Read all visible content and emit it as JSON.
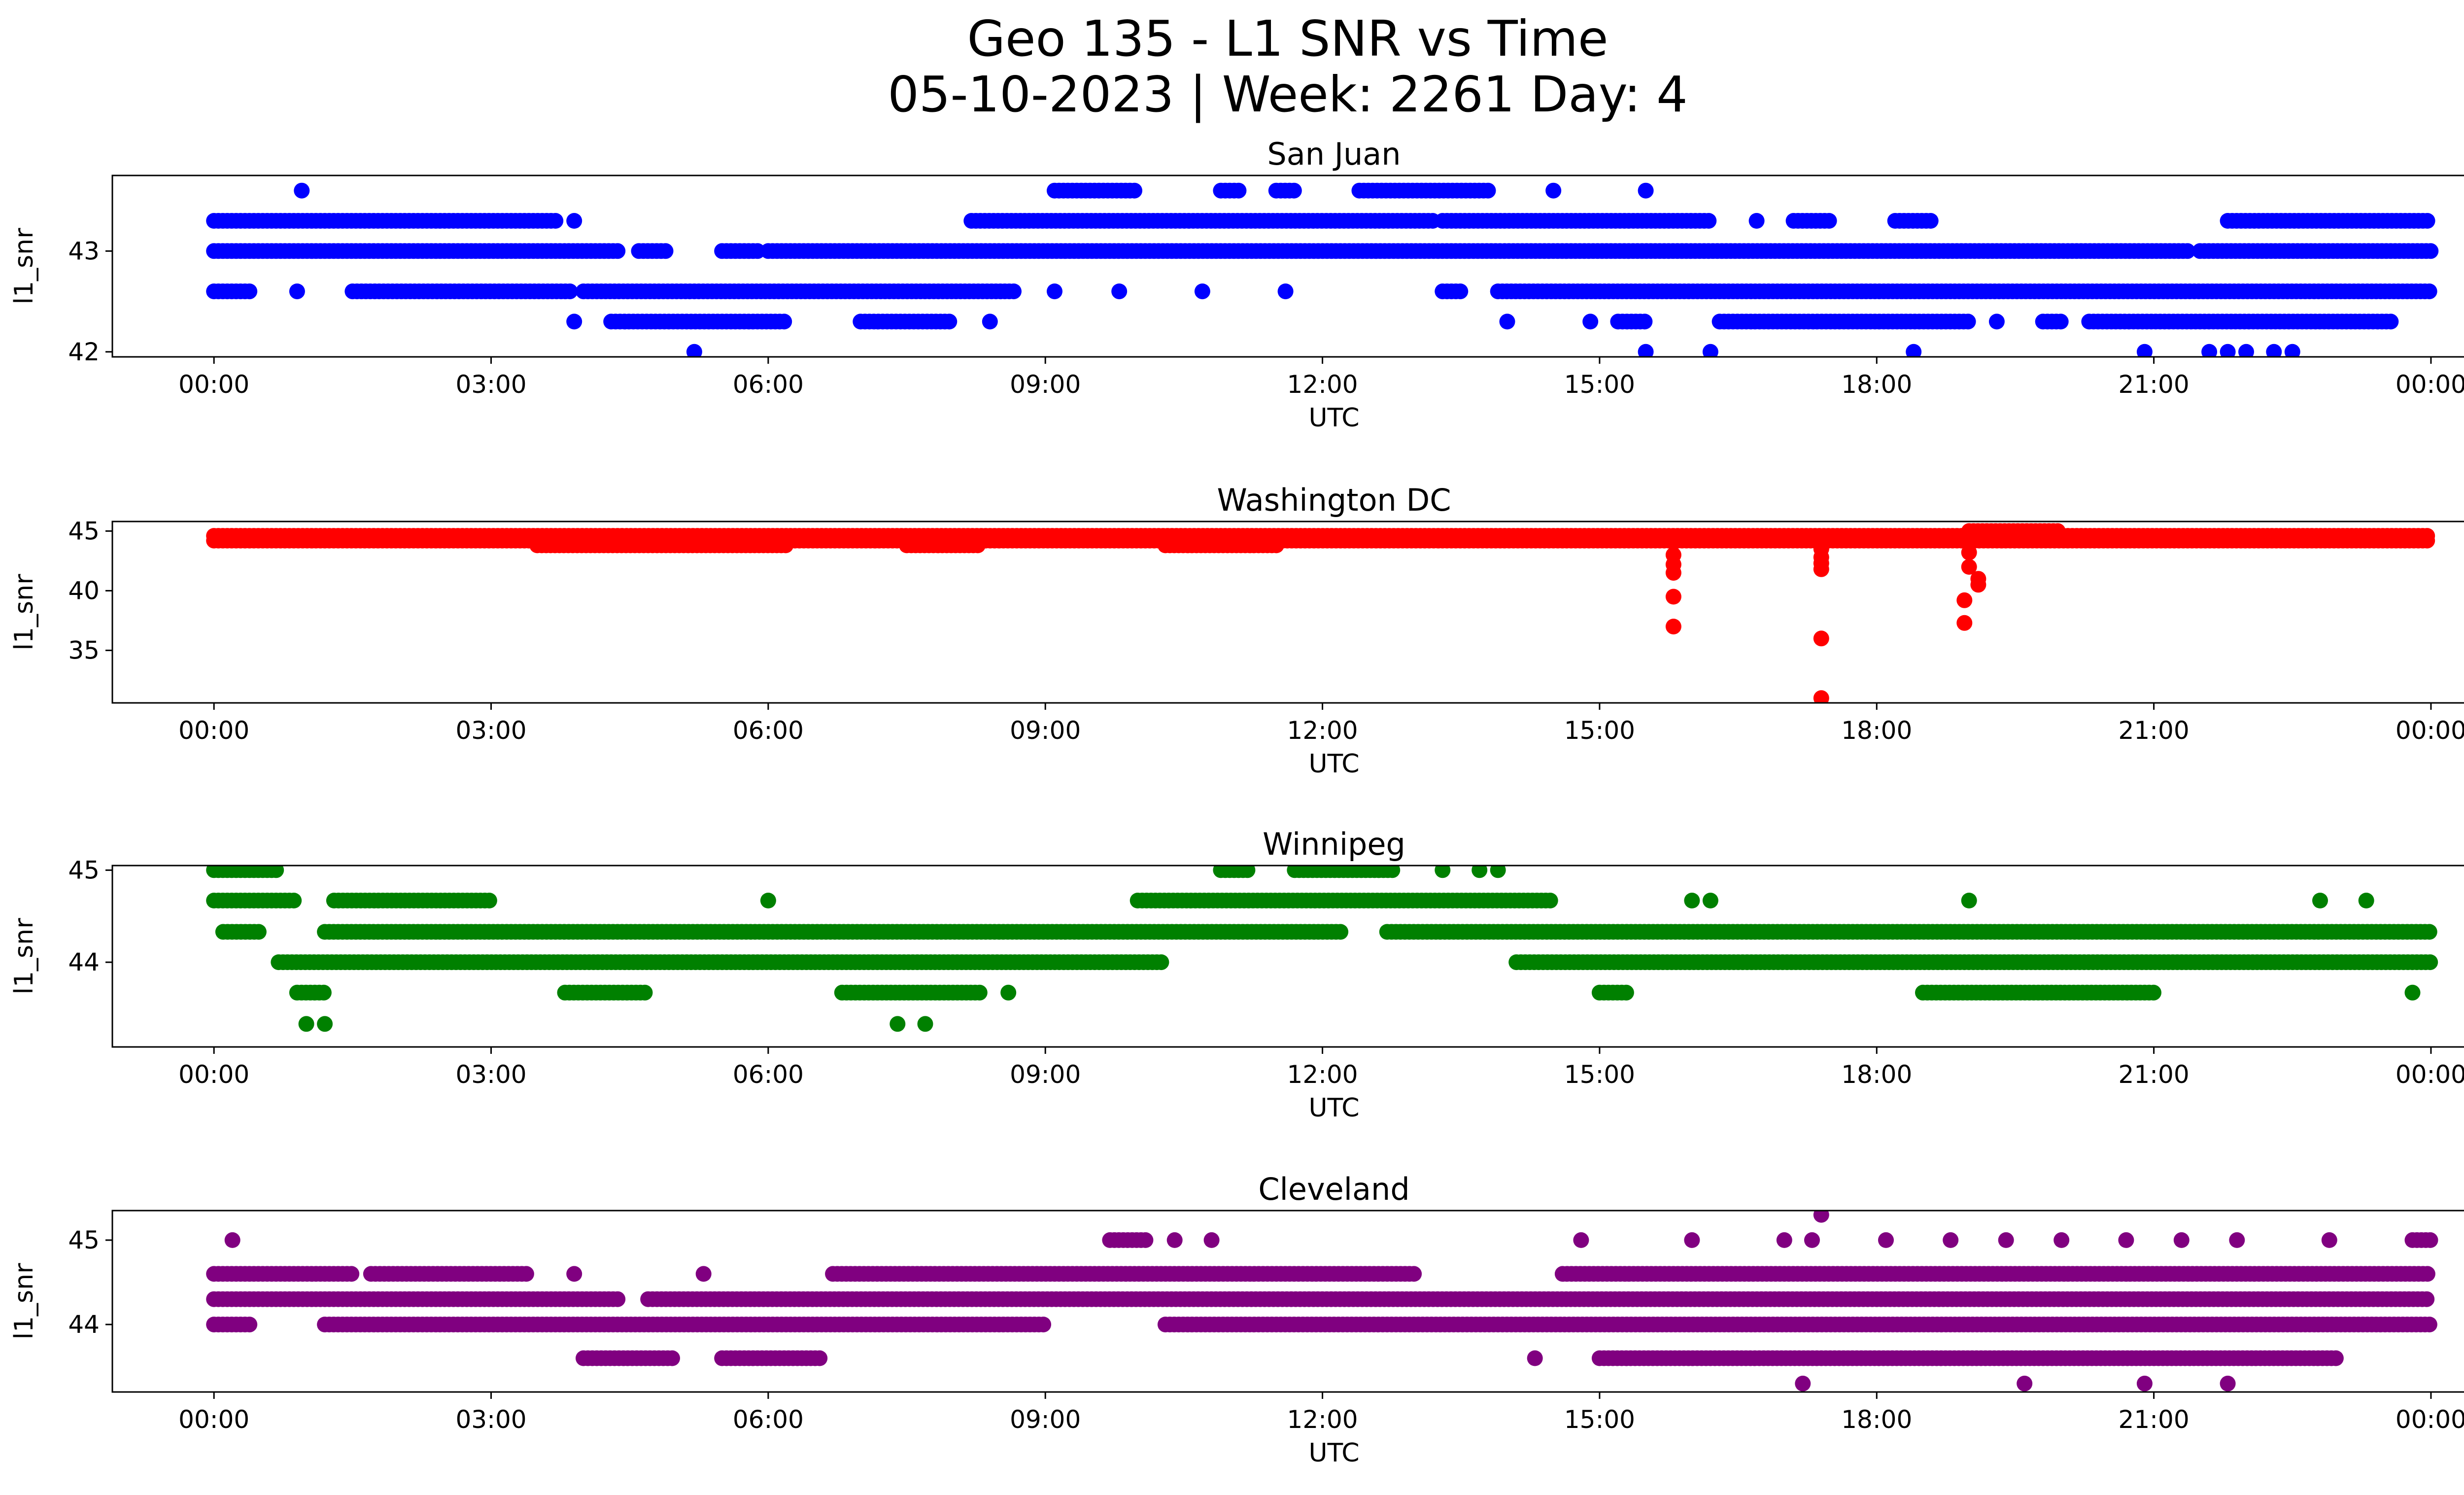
{
  "figure": {
    "title_line1": "Geo 135 - L1 SNR vs Time",
    "title_line2": "05-10-2023 | Week: 2261 Day: 4"
  },
  "chart_data": [
    {
      "type": "scatter",
      "title": "San Juan",
      "xlabel": "UTC",
      "ylabel": "l1_snr",
      "color": "#0000ff",
      "x_unit": "hours UTC",
      "xlim": [
        -1.1,
        25.35
      ],
      "x_ticks": [
        0,
        3,
        6,
        9,
        12,
        15,
        18,
        21,
        24
      ],
      "x_tick_labels": [
        "00:00",
        "03:00",
        "06:00",
        "09:00",
        "12:00",
        "15:00",
        "18:00",
        "21:00",
        "00:00"
      ],
      "ylim": [
        41.95,
        43.75
      ],
      "y_ticks": [
        42,
        43
      ],
      "y_tick_labels": [
        "42",
        "43"
      ],
      "bands": [
        {
          "y": 43.0,
          "segments": [
            [
              0,
              4.4
            ],
            [
              4.6,
              4.9
            ],
            [
              5.5,
              5.9
            ],
            [
              6.0,
              21.4
            ],
            [
              21.5,
              24
            ]
          ]
        },
        {
          "y": 42.6,
          "segments": [
            [
              0,
              0.4
            ],
            [
              1.5,
              3.9
            ],
            [
              4.0,
              8.7
            ],
            [
              13.3,
              13.5
            ],
            [
              13.9,
              24
            ]
          ]
        },
        {
          "y": 43.3,
          "segments": [
            [
              0,
              3.7
            ],
            [
              8.2,
              13.2
            ],
            [
              13.3,
              16.2
            ],
            [
              17.1,
              17.5
            ],
            [
              18.2,
              18.6
            ],
            [
              21.8,
              24
            ]
          ]
        },
        {
          "y": 42.3,
          "segments": [
            [
              4.3,
              6.2
            ],
            [
              7.0,
              8.0
            ],
            [
              15.2,
              15.5
            ],
            [
              16.3,
              19.0
            ],
            [
              19.8,
              20.0
            ],
            [
              20.3,
              23.6
            ]
          ]
        },
        {
          "y": 43.6,
          "segments": [
            [
              9.1,
              10.0
            ],
            [
              10.9,
              11.1
            ],
            [
              11.5,
              11.7
            ],
            [
              12.4,
              13.8
            ]
          ]
        }
      ],
      "extra_points": [
        {
          "x": 0.95,
          "y": 43.6
        },
        {
          "x": 14.5,
          "y": 43.6
        },
        {
          "x": 15.5,
          "y": 43.6
        },
        {
          "x": 0.9,
          "y": 42.6
        },
        {
          "x": 9.8,
          "y": 42.6
        },
        {
          "x": 10.7,
          "y": 42.6
        },
        {
          "x": 11.6,
          "y": 42.6
        },
        {
          "x": 9.1,
          "y": 42.6
        },
        {
          "x": 3.9,
          "y": 42.3
        },
        {
          "x": 8.4,
          "y": 42.3
        },
        {
          "x": 14.0,
          "y": 42.3
        },
        {
          "x": 14.9,
          "y": 42.3
        },
        {
          "x": 19.3,
          "y": 42.3
        },
        {
          "x": 5.2,
          "y": 42.0
        },
        {
          "x": 15.5,
          "y": 42.0
        },
        {
          "x": 16.2,
          "y": 42.0
        },
        {
          "x": 18.4,
          "y": 42.0
        },
        {
          "x": 20.9,
          "y": 42.0
        },
        {
          "x": 21.6,
          "y": 42.0
        },
        {
          "x": 21.8,
          "y": 42.0
        },
        {
          "x": 22.0,
          "y": 42.0
        },
        {
          "x": 22.3,
          "y": 42.0
        },
        {
          "x": 22.5,
          "y": 42.0
        },
        {
          "x": 3.9,
          "y": 43.3
        },
        {
          "x": 16.7,
          "y": 43.3
        }
      ]
    },
    {
      "type": "scatter",
      "title": "Washington DC",
      "xlabel": "UTC",
      "ylabel": "l1_snr",
      "color": "#ff0000",
      "x_unit": "hours UTC",
      "xlim": [
        -1.1,
        25.35
      ],
      "x_ticks": [
        0,
        3,
        6,
        9,
        12,
        15,
        18,
        21,
        24
      ],
      "x_tick_labels": [
        "00:00",
        "03:00",
        "06:00",
        "09:00",
        "12:00",
        "15:00",
        "18:00",
        "21:00",
        "00:00"
      ],
      "ylim": [
        30.6,
        45.8
      ],
      "y_ticks": [
        35,
        40,
        45
      ],
      "y_tick_labels": [
        "35",
        "40",
        "45"
      ],
      "bands": [
        {
          "y": 44.6,
          "segments": [
            [
              0,
              24
            ]
          ]
        },
        {
          "y": 44.2,
          "segments": [
            [
              0,
              24
            ]
          ]
        },
        {
          "y": 43.8,
          "segments": [
            [
              3.5,
              6.2
            ],
            [
              7.5,
              8.3
            ],
            [
              10.3,
              11.5
            ]
          ]
        },
        {
          "y": 45.0,
          "segments": [
            [
              19.0,
              20.0
            ]
          ]
        }
      ],
      "extra_points": [
        {
          "x": 15.8,
          "y": 43.0
        },
        {
          "x": 15.8,
          "y": 42.2
        },
        {
          "x": 15.8,
          "y": 41.5
        },
        {
          "x": 15.8,
          "y": 39.5
        },
        {
          "x": 15.8,
          "y": 37.0
        },
        {
          "x": 17.4,
          "y": 43.5
        },
        {
          "x": 17.4,
          "y": 42.8
        },
        {
          "x": 17.4,
          "y": 42.3
        },
        {
          "x": 17.4,
          "y": 41.8
        },
        {
          "x": 17.4,
          "y": 36.0
        },
        {
          "x": 17.4,
          "y": 31.0
        },
        {
          "x": 19.0,
          "y": 43.2
        },
        {
          "x": 19.0,
          "y": 42.0
        },
        {
          "x": 19.1,
          "y": 41.0
        },
        {
          "x": 19.1,
          "y": 40.5
        },
        {
          "x": 18.95,
          "y": 39.2
        },
        {
          "x": 18.95,
          "y": 37.3
        }
      ]
    },
    {
      "type": "scatter",
      "title": "Winnipeg",
      "xlabel": "UTC",
      "ylabel": "l1_snr",
      "color": "#008000",
      "x_unit": "hours UTC",
      "xlim": [
        -1.1,
        25.35
      ],
      "x_ticks": [
        0,
        3,
        6,
        9,
        12,
        15,
        18,
        21,
        24
      ],
      "x_tick_labels": [
        "00:00",
        "03:00",
        "06:00",
        "09:00",
        "12:00",
        "15:00",
        "18:00",
        "21:00",
        "00:00"
      ],
      "ylim": [
        43.08,
        45.05
      ],
      "y_ticks": [
        44,
        45
      ],
      "y_tick_labels": [
        "44",
        "45"
      ],
      "bands": [
        {
          "y": 44.0,
          "segments": [
            [
              0.7,
              10.3
            ],
            [
              14.1,
              24
            ]
          ]
        },
        {
          "y": 44.33,
          "segments": [
            [
              0.1,
              0.5
            ],
            [
              1.2,
              12.2
            ],
            [
              12.7,
              24
            ]
          ]
        },
        {
          "y": 44.67,
          "segments": [
            [
              0,
              0.9
            ],
            [
              1.3,
              3.0
            ],
            [
              10.0,
              14.5
            ]
          ]
        },
        {
          "y": 45.0,
          "segments": [
            [
              0,
              0.7
            ],
            [
              10.9,
              11.2
            ],
            [
              11.7,
              12.8
            ]
          ]
        },
        {
          "y": 43.67,
          "segments": [
            [
              0.9,
              1.2
            ],
            [
              3.8,
              4.7
            ],
            [
              6.8,
              8.3
            ],
            [
              15.0,
              15.3
            ],
            [
              18.5,
              21.0
            ]
          ]
        }
      ],
      "extra_points": [
        {
          "x": 1.0,
          "y": 43.33
        },
        {
          "x": 1.2,
          "y": 43.33
        },
        {
          "x": 7.4,
          "y": 43.33
        },
        {
          "x": 7.7,
          "y": 43.33
        },
        {
          "x": 13.3,
          "y": 45.0
        },
        {
          "x": 13.7,
          "y": 45.0
        },
        {
          "x": 13.9,
          "y": 45.0
        },
        {
          "x": 6.0,
          "y": 44.67
        },
        {
          "x": 16.0,
          "y": 44.67
        },
        {
          "x": 16.2,
          "y": 44.67
        },
        {
          "x": 19.0,
          "y": 44.67
        },
        {
          "x": 22.8,
          "y": 44.67
        },
        {
          "x": 23.3,
          "y": 44.67
        },
        {
          "x": 8.6,
          "y": 43.67
        },
        {
          "x": 23.8,
          "y": 43.67
        }
      ]
    },
    {
      "type": "scatter",
      "title": "Cleveland",
      "xlabel": "UTC",
      "ylabel": "l1_snr",
      "color": "#800080",
      "x_unit": "hours UTC",
      "xlim": [
        -1.1,
        25.35
      ],
      "x_ticks": [
        0,
        3,
        6,
        9,
        12,
        15,
        18,
        21,
        24
      ],
      "x_tick_labels": [
        "00:00",
        "03:00",
        "06:00",
        "09:00",
        "12:00",
        "15:00",
        "18:00",
        "21:00",
        "00:00"
      ],
      "ylim": [
        43.2,
        45.35
      ],
      "y_ticks": [
        44,
        45
      ],
      "y_tick_labels": [
        "44",
        "45"
      ],
      "bands": [
        {
          "y": 44.3,
          "segments": [
            [
              0,
              4.4
            ],
            [
              4.7,
              24
            ]
          ]
        },
        {
          "y": 44.6,
          "segments": [
            [
              0,
              1.5
            ],
            [
              1.7,
              3.4
            ],
            [
              6.7,
              13.0
            ],
            [
              14.6,
              24
            ]
          ]
        },
        {
          "y": 44.0,
          "segments": [
            [
              0,
              0.4
            ],
            [
              1.2,
              9.0
            ],
            [
              10.3,
              24
            ]
          ]
        },
        {
          "y": 43.6,
          "segments": [
            [
              4.0,
              5.0
            ],
            [
              5.5,
              6.6
            ],
            [
              15.0,
              23.0
            ]
          ]
        },
        {
          "y": 45.0,
          "segments": [
            [
              9.7,
              10.1
            ],
            [
              23.8,
              24
            ]
          ]
        }
      ],
      "extra_points": [
        {
          "x": 0.2,
          "y": 45.0
        },
        {
          "x": 10.4,
          "y": 45.0
        },
        {
          "x": 10.8,
          "y": 45.0
        },
        {
          "x": 14.8,
          "y": 45.0
        },
        {
          "x": 16.0,
          "y": 45.0
        },
        {
          "x": 17.0,
          "y": 45.0
        },
        {
          "x": 17.3,
          "y": 45.0
        },
        {
          "x": 18.1,
          "y": 45.0
        },
        {
          "x": 18.8,
          "y": 45.0
        },
        {
          "x": 19.4,
          "y": 45.0
        },
        {
          "x": 20.0,
          "y": 45.0
        },
        {
          "x": 20.7,
          "y": 45.0
        },
        {
          "x": 21.3,
          "y": 45.0
        },
        {
          "x": 21.9,
          "y": 45.0
        },
        {
          "x": 22.9,
          "y": 45.0
        },
        {
          "x": 17.4,
          "y": 45.3
        },
        {
          "x": 17.2,
          "y": 43.3
        },
        {
          "x": 19.6,
          "y": 43.3
        },
        {
          "x": 20.9,
          "y": 43.3
        },
        {
          "x": 21.8,
          "y": 43.3
        },
        {
          "x": 14.3,
          "y": 43.6
        },
        {
          "x": 5.3,
          "y": 44.6
        },
        {
          "x": 3.9,
          "y": 44.6
        }
      ]
    }
  ]
}
